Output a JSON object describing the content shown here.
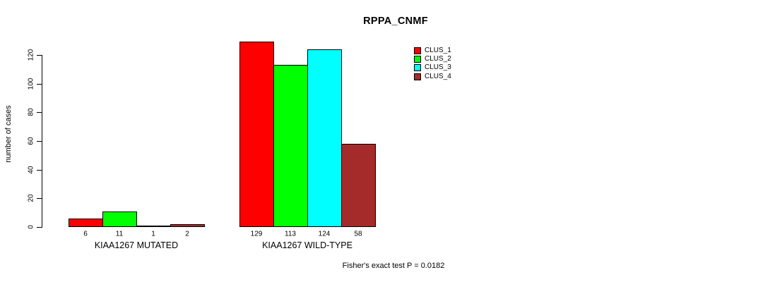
{
  "chart_data": {
    "type": "bar",
    "title": "RPPA_CNMF",
    "ylabel": "number of cases",
    "xlabel": "",
    "categories": [
      "KIAA1267 MUTATED",
      "KIAA1267 WILD-TYPE"
    ],
    "series": [
      {
        "name": "CLUS_1",
        "color": "#ff0000",
        "values": [
          6,
          129
        ]
      },
      {
        "name": "CLUS_2",
        "color": "#00ff00",
        "values": [
          11,
          113
        ]
      },
      {
        "name": "CLUS_3",
        "color": "#00ffff",
        "values": [
          1,
          124
        ]
      },
      {
        "name": "CLUS_4",
        "color": "#a52a2a",
        "values": [
          2,
          58
        ]
      }
    ],
    "yticks": [
      0,
      20,
      40,
      60,
      80,
      100,
      120
    ],
    "ylim": [
      0,
      129
    ],
    "grid": false,
    "bar_value_labels_shown": true,
    "legend_position": "top-right",
    "annotation": "Fisher's exact test P = 0.0182"
  }
}
